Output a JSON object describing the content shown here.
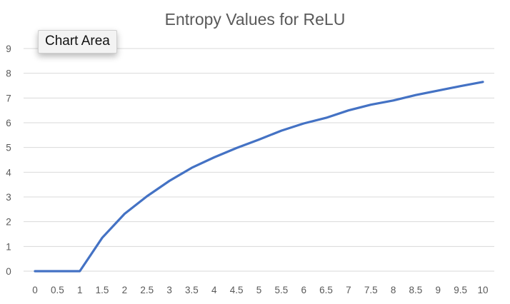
{
  "tooltip": {
    "label": "Chart Area"
  },
  "chart_data": {
    "type": "line",
    "title": "Entropy Values for ReLU",
    "xlabel": "",
    "ylabel": "",
    "categories": [
      "0",
      "0.5",
      "1",
      "1.5",
      "2",
      "2.5",
      "3",
      "3.5",
      "4",
      "4.5",
      "5",
      "5.5",
      "6",
      "6.5",
      "7",
      "7.5",
      "8",
      "8.5",
      "9",
      "9.5",
      "10"
    ],
    "series": [
      {
        "values": [
          0,
          0,
          0,
          1.35,
          2.32,
          3.03,
          3.65,
          4.18,
          4.6,
          4.98,
          5.32,
          5.68,
          5.97,
          6.2,
          6.5,
          6.73,
          6.9,
          7.12,
          7.3,
          7.48,
          7.65
        ],
        "color": "#4472c4"
      }
    ],
    "yticks": [
      "0",
      "1",
      "2",
      "3",
      "4",
      "5",
      "6",
      "7",
      "8",
      "9"
    ],
    "ylim": [
      0,
      9
    ],
    "grid": true,
    "legend": "none"
  }
}
